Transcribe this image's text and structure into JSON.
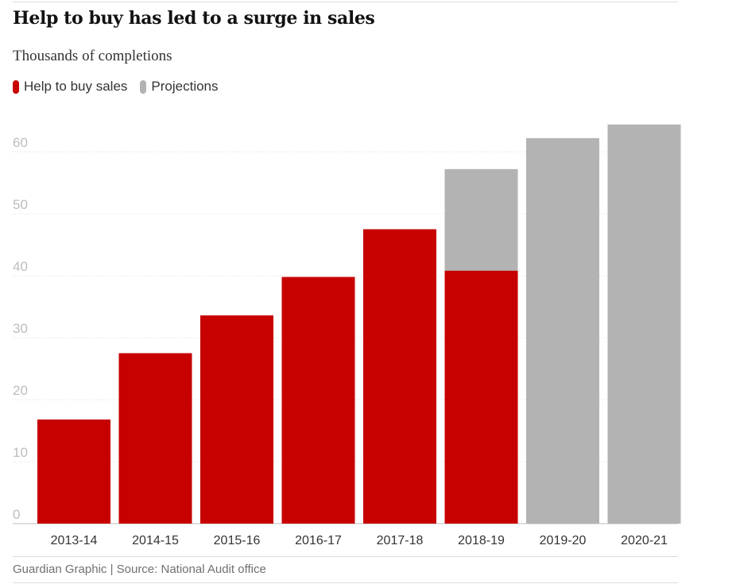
{
  "title": "Help to buy has led to a surge in sales",
  "subtitle": "Thousands of completions",
  "legend": [
    {
      "label": "Help to buy sales",
      "color": "#c70000"
    },
    {
      "label": "Projections",
      "color": "#b3b3b4"
    }
  ],
  "source": "Guardian Graphic | Source: National Audit office",
  "chart_data": {
    "type": "bar",
    "categories": [
      "2013-14",
      "2014-15",
      "2015-16",
      "2016-17",
      "2017-18",
      "2018-19",
      "2019-20",
      "2020-21"
    ],
    "series": [
      {
        "name": "Help to buy sales",
        "color": "#c70000",
        "values": [
          16.8,
          27.5,
          33.6,
          39.8,
          47.5,
          40.8,
          null,
          null
        ]
      },
      {
        "name": "Projections",
        "color": "#b3b3b4",
        "values": [
          null,
          null,
          null,
          null,
          null,
          57.2,
          62.2,
          64.4
        ]
      }
    ],
    "yticks": [
      0,
      10,
      20,
      30,
      40,
      50,
      60
    ],
    "ylim": [
      0,
      65
    ],
    "grid": true,
    "legend_position": "top-left"
  }
}
